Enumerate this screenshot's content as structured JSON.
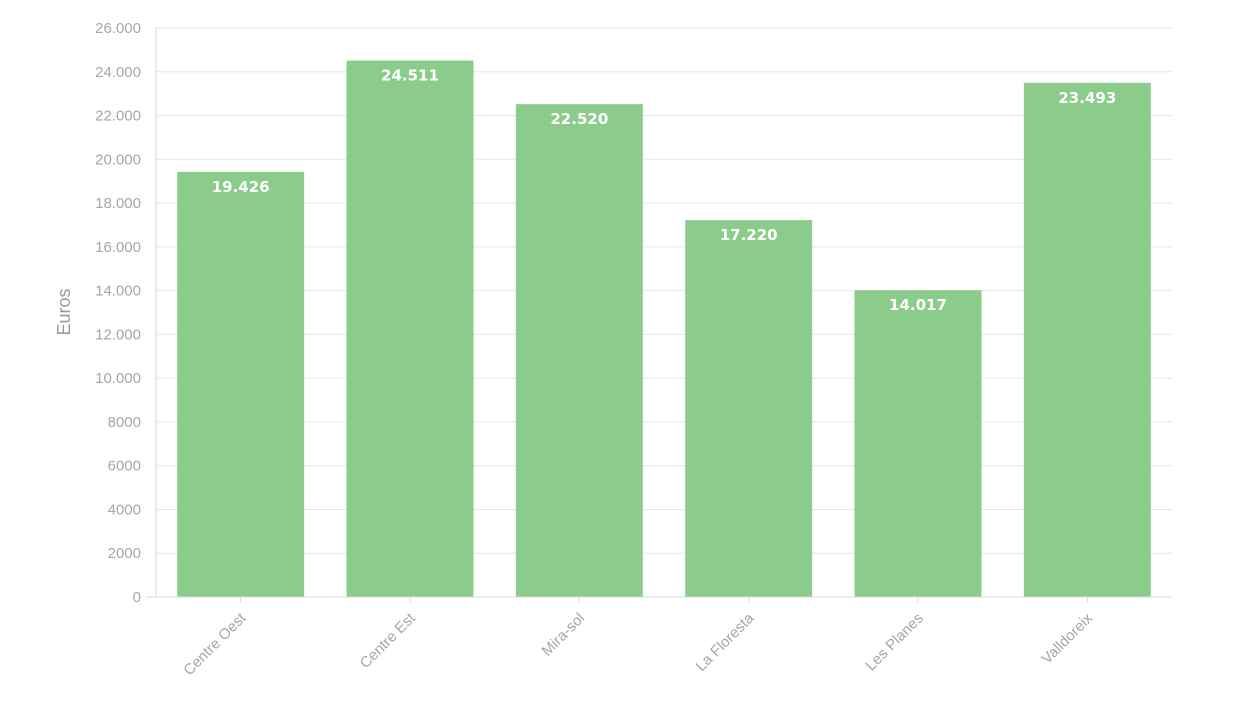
{
  "chart_data": {
    "type": "bar",
    "title": "",
    "xlabel": "",
    "ylabel": "Euros",
    "categories": [
      "Centre Oest",
      "Centre Est",
      "Mira-sol",
      "La Floresta",
      "Les Planes",
      "Valldoreix"
    ],
    "values": [
      19426,
      24511,
      22520,
      17220,
      14017,
      23493
    ],
    "value_labels": [
      "19.426",
      "24.511",
      "22.520",
      "17.220",
      "14.017",
      "23.493"
    ],
    "ylim": [
      0,
      26000
    ],
    "yticks": [
      0,
      2000,
      4000,
      6000,
      8000,
      10000,
      12000,
      14000,
      16000,
      18000,
      20000,
      22000,
      24000,
      26000
    ],
    "ytick_labels": [
      "0",
      "2000",
      "4000",
      "6000",
      "8000",
      "10.000",
      "12.000",
      "14.000",
      "16.000",
      "18.000",
      "20.000",
      "22.000",
      "24.000",
      "26.000"
    ],
    "grid": true,
    "legend": "none",
    "bar_color": "#8bcc8a"
  }
}
